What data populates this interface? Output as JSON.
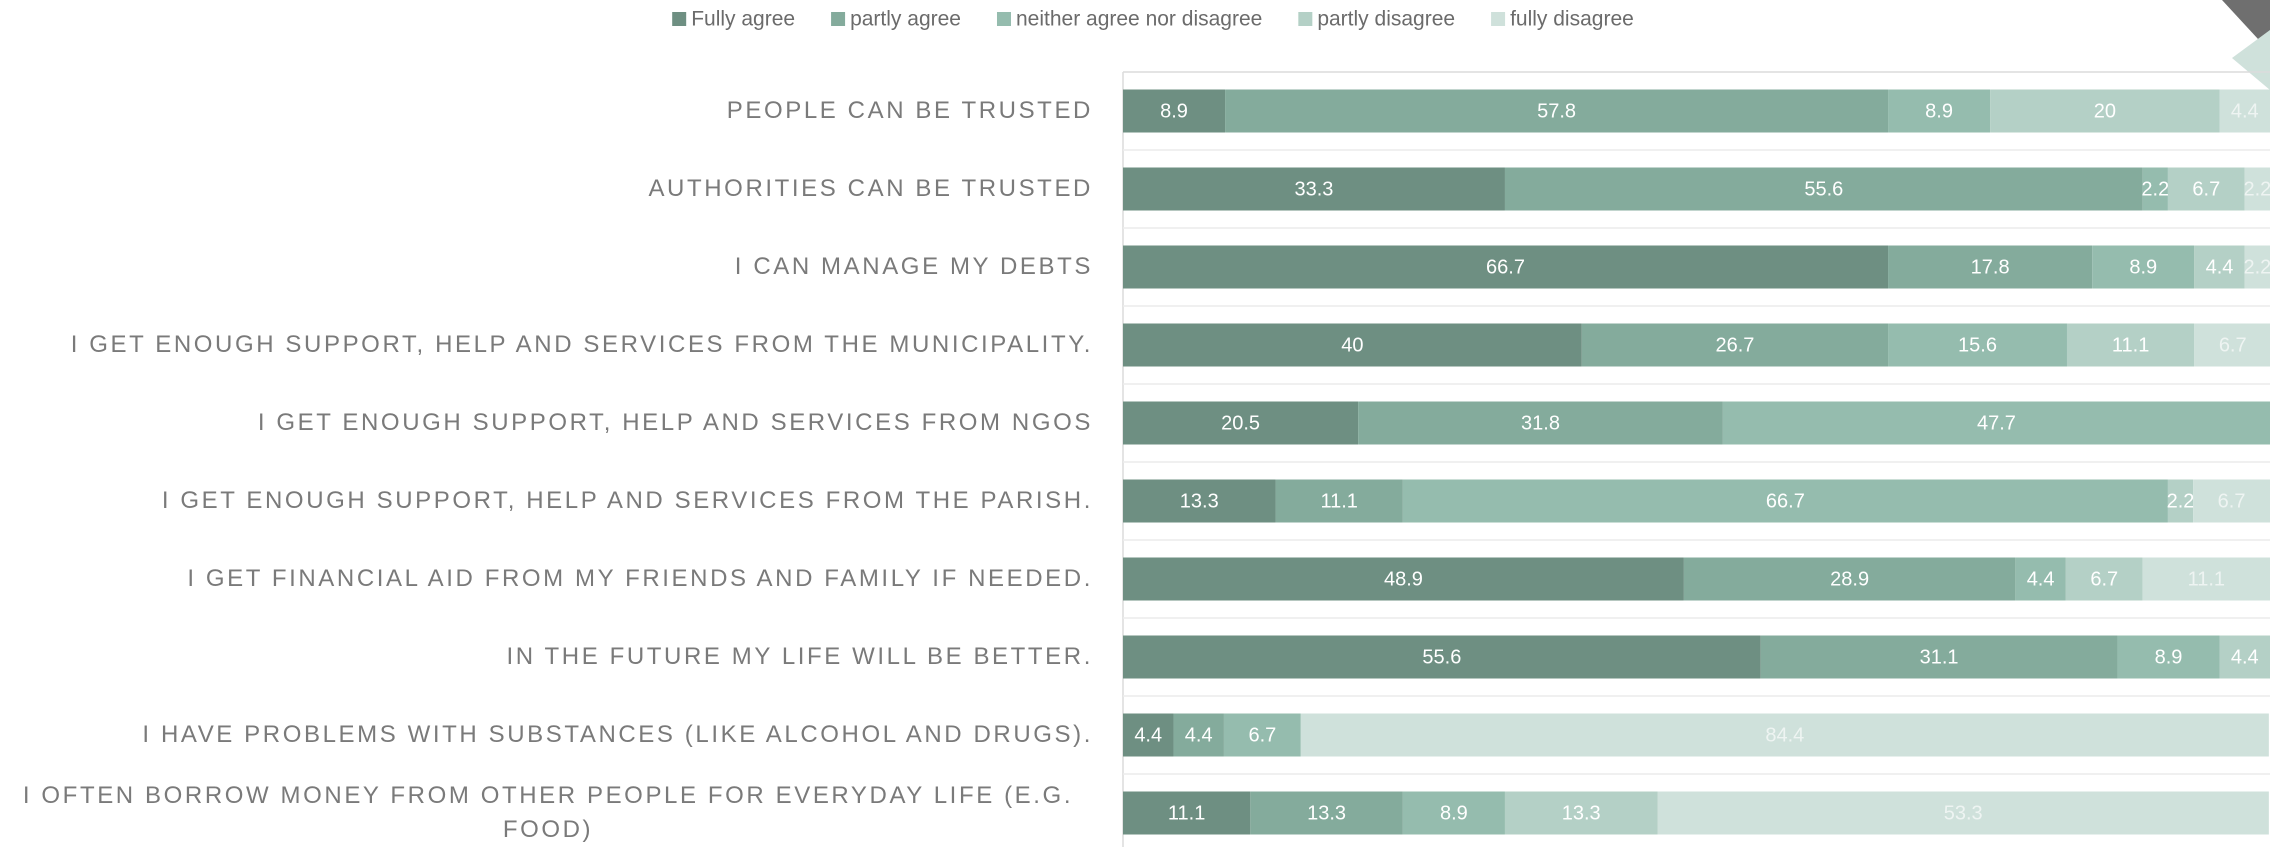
{
  "chart_data": {
    "type": "stacked-barh",
    "categories": [
      "PEOPLE CAN BE TRUSTED",
      "AUTHORITIES CAN BE TRUSTED",
      "I CAN MANAGE MY DEBTS",
      "I GET ENOUGH SUPPORT, HELP AND SERVICES FROM THE MUNICIPALITY.",
      "I GET ENOUGH SUPPORT, HELP AND SERVICES FROM NGOS",
      "I GET ENOUGH SUPPORT, HELP AND SERVICES FROM THE PARISH.",
      "I GET FINANCIAL AID FROM MY FRIENDS AND FAMILY IF NEEDED.",
      "IN THE FUTURE MY LIFE WILL BE BETTER.",
      "I HAVE PROBLEMS WITH SUBSTANCES (LIKE ALCOHOL AND DRUGS).",
      "I OFTEN BORROW MONEY FROM OTHER PEOPLE FOR EVERYDAY LIFE (E.G. FOOD)"
    ],
    "series": [
      {
        "name": "Fully agree",
        "color": "#6e8f82",
        "values": [
          8.9,
          33.3,
          66.7,
          40,
          20.5,
          13.3,
          48.9,
          55.6,
          4.4,
          11.1
        ]
      },
      {
        "name": "partly agree",
        "color": "#84ab9c",
        "values": [
          57.8,
          55.6,
          17.8,
          26.7,
          31.8,
          11.1,
          28.9,
          31.1,
          4.4,
          13.3
        ]
      },
      {
        "name": "neither agree nor disagree",
        "color": "#95bcae",
        "values": [
          8.9,
          2.2,
          8.9,
          15.6,
          47.7,
          66.7,
          4.4,
          8.9,
          6.7,
          8.9
        ]
      },
      {
        "name": "partly disagree",
        "color": "#b4d0c6",
        "values": [
          20,
          6.7,
          4.4,
          11.1,
          null,
          2.2,
          6.7,
          4.4,
          null,
          13.3
        ]
      },
      {
        "name": "fully disagree",
        "color": "#cfe1db",
        "values": [
          4.4,
          2.2,
          2.2,
          6.7,
          null,
          6.7,
          11.1,
          null,
          84.4,
          53.3
        ]
      }
    ],
    "xlim": [
      0,
      100
    ],
    "legend": "top"
  }
}
